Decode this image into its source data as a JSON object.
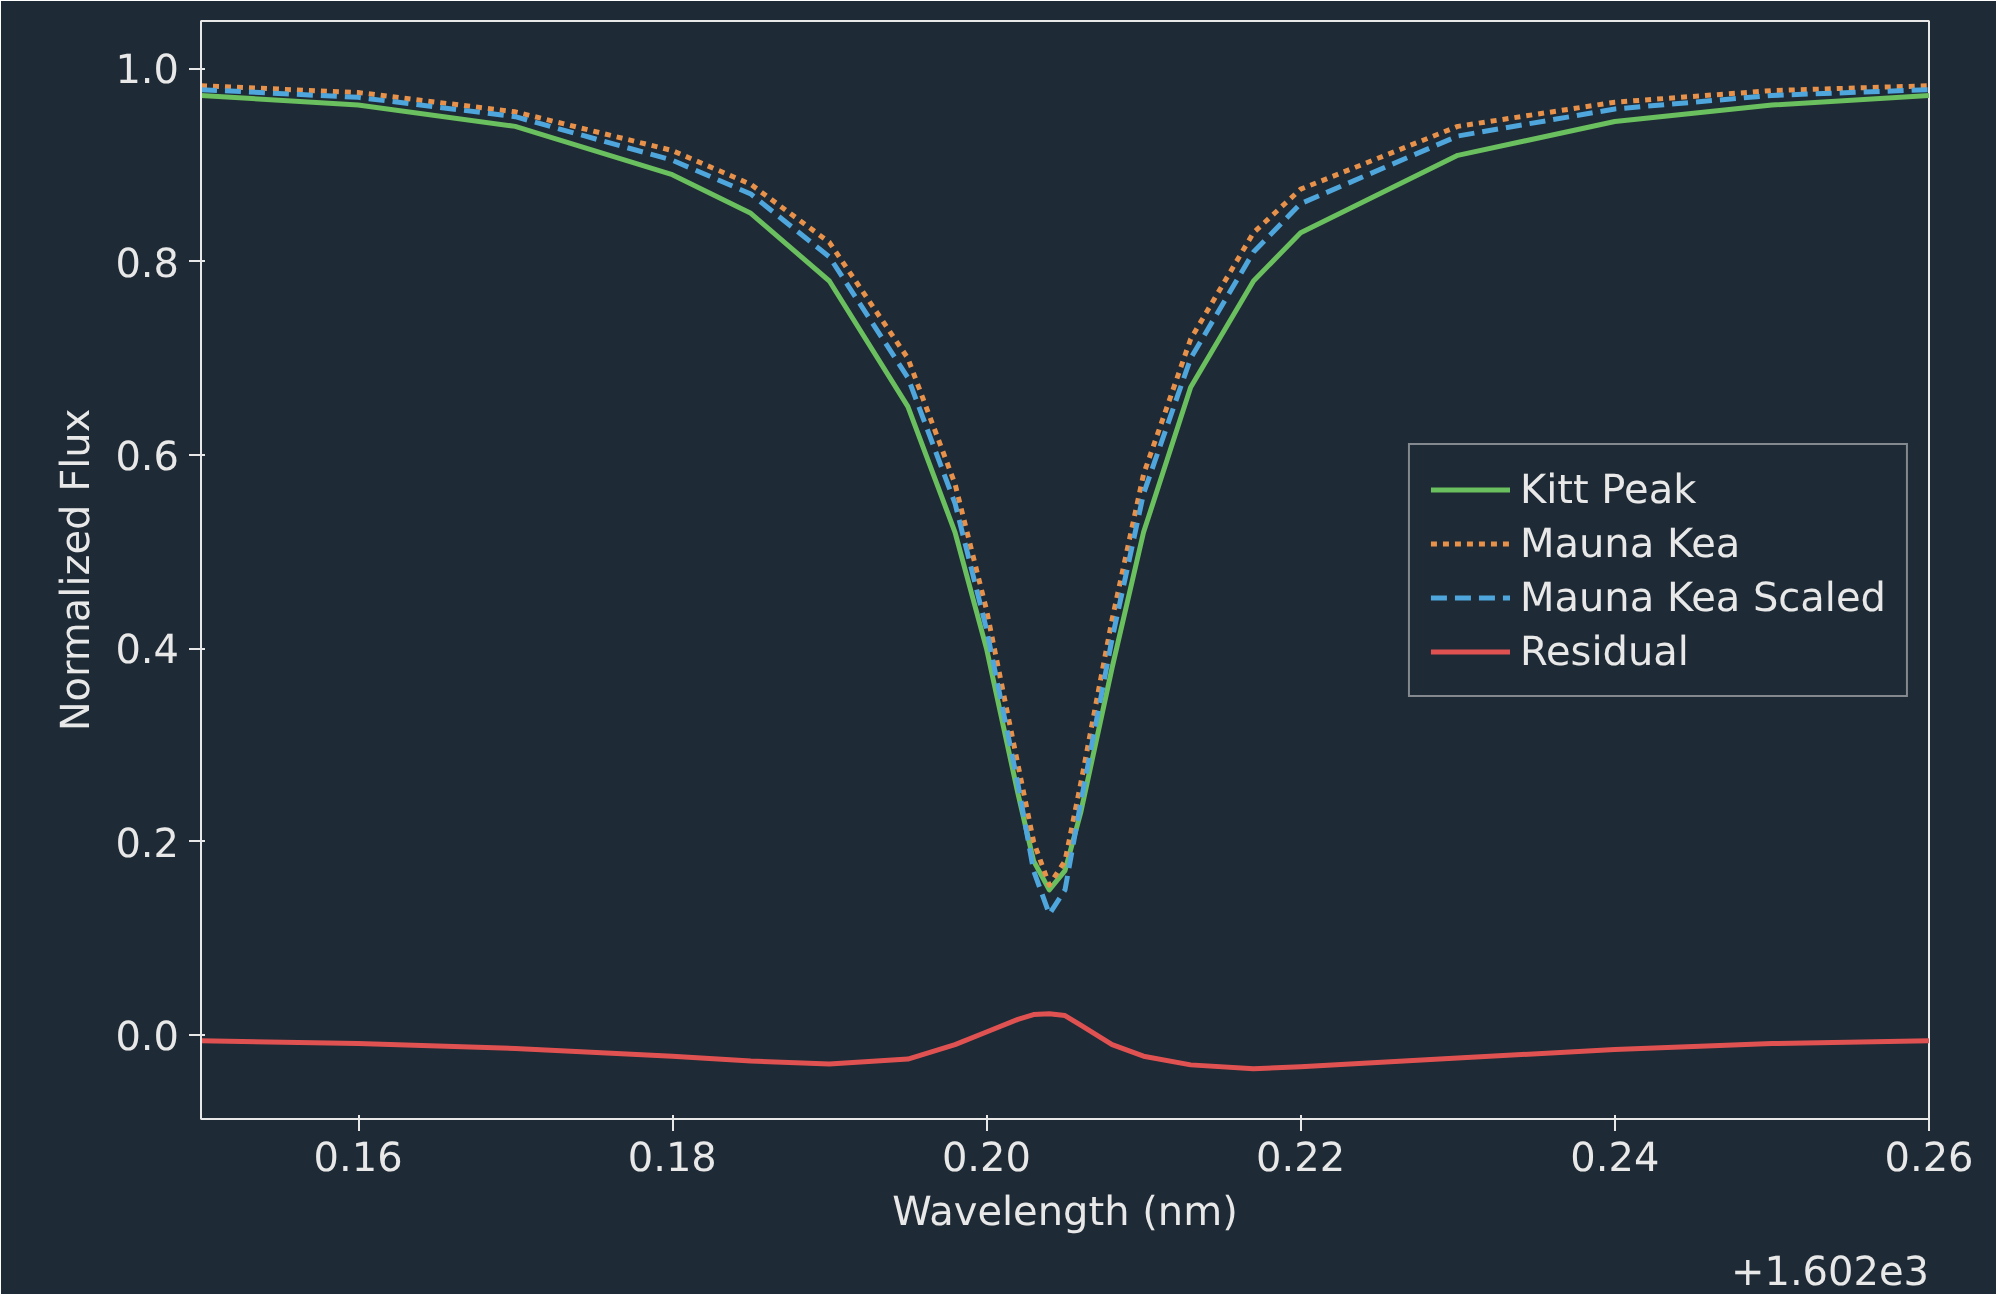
{
  "chart_data": {
    "type": "line",
    "xlabel": "Wavelength (nm)",
    "ylabel": "Normalized Flux",
    "annotations": [
      "+1.602e3"
    ],
    "x": [
      0.15,
      0.16,
      0.17,
      0.18,
      0.185,
      0.19,
      0.195,
      0.198,
      0.2,
      0.202,
      0.203,
      0.204,
      0.205,
      0.206,
      0.208,
      0.21,
      0.213,
      0.217,
      0.22,
      0.23,
      0.24,
      0.25,
      0.26
    ],
    "series": [
      {
        "name": "Kitt Peak",
        "color": "#6abf5e",
        "line_style": "solid",
        "values": [
          0.972,
          0.962,
          0.94,
          0.89,
          0.85,
          0.78,
          0.65,
          0.52,
          0.4,
          0.25,
          0.18,
          0.15,
          0.17,
          0.23,
          0.38,
          0.52,
          0.67,
          0.78,
          0.83,
          0.91,
          0.945,
          0.962,
          0.972
        ]
      },
      {
        "name": "Mauna Kea",
        "color": "#e8914a",
        "line_style": "dotted",
        "values": [
          0.982,
          0.975,
          0.955,
          0.915,
          0.88,
          0.82,
          0.7,
          0.57,
          0.44,
          0.28,
          0.2,
          0.155,
          0.18,
          0.26,
          0.43,
          0.58,
          0.72,
          0.83,
          0.875,
          0.94,
          0.965,
          0.977,
          0.982
        ]
      },
      {
        "name": "Mauna Kea Scaled",
        "color": "#4ea6dc",
        "line_style": "dashed",
        "values": [
          0.978,
          0.97,
          0.95,
          0.905,
          0.87,
          0.805,
          0.68,
          0.55,
          0.42,
          0.26,
          0.17,
          0.125,
          0.15,
          0.24,
          0.41,
          0.56,
          0.7,
          0.81,
          0.86,
          0.93,
          0.958,
          0.972,
          0.978
        ]
      },
      {
        "name": "Residual",
        "color": "#e05252",
        "line_style": "solid",
        "values": [
          -0.006,
          -0.009,
          -0.014,
          -0.022,
          -0.027,
          -0.03,
          -0.025,
          -0.01,
          0.003,
          0.016,
          0.021,
          0.022,
          0.02,
          0.01,
          -0.01,
          -0.022,
          -0.031,
          -0.035,
          -0.033,
          -0.024,
          -0.015,
          -0.009,
          -0.006
        ]
      }
    ],
    "xlim": [
      0.15,
      0.26
    ],
    "xticks": [
      0.16,
      0.18,
      {
        "value": 0.2,
        "label": "0.20"
      },
      0.22,
      0.24,
      0.26
    ],
    "ylim": [
      -0.087,
      1.049
    ],
    "yticks": [
      {
        "value": 0,
        "label": "0.0"
      },
      {
        "value": 0.2,
        "label": "0.2"
      },
      {
        "value": 0.4,
        "label": "0.4"
      },
      {
        "value": 0.6,
        "label": "0.6"
      },
      {
        "value": 0.8,
        "label": "0.8"
      },
      {
        "value": 1.0,
        "label": "1.0"
      }
    ],
    "grid": false,
    "legend": "right"
  }
}
